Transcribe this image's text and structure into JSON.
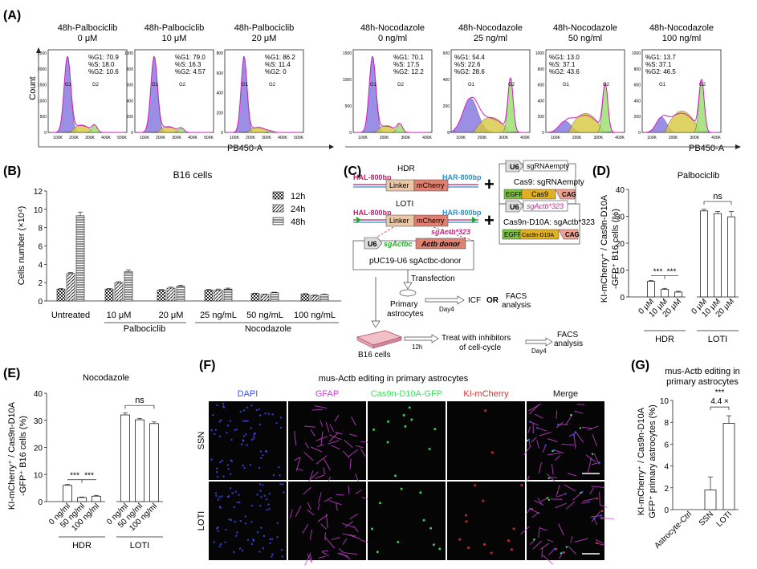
{
  "panelA": {
    "label": "(A)",
    "ylabel": "Count",
    "xlabel": "PB450-A",
    "ticks": [
      "100K",
      "200K",
      "300K",
      "400K",
      "500K"
    ],
    "ticks4": [
      "100K",
      "200K",
      "300K",
      "400K"
    ],
    "plots": [
      {
        "t1": "48h-Palbociclib",
        "t2": "0 μM",
        "g1": "%G1: 70.9",
        "s": "%S: 18.0",
        "g2": "%G2: 10.6",
        "yt": [
          "2500",
          "2000",
          "1500",
          "1000",
          "500",
          "0"
        ]
      },
      {
        "t1": "48h-Palbociclib",
        "t2": "10 μM",
        "g1": "%G1: 79.0",
        "s": "%S: 16.3",
        "g2": "%G2: 4.57",
        "yt": [
          "1000",
          "800",
          "600",
          "400",
          "200",
          "0"
        ]
      },
      {
        "t1": "48h-Palbociclib",
        "t2": "20 μM",
        "g1": "%G1: 86.2",
        "s": "%S: 11.4",
        "g2": "%G2: 0",
        "yt": [
          "800",
          "600",
          "400",
          "200",
          "0"
        ]
      },
      {
        "t1": "48h-Nocodazole",
        "t2": "0 ng/ml",
        "g1": "%G1: 70.1",
        "s": "%S: 17.5",
        "g2": "%G2: 12.2",
        "yt": [
          "1500",
          "1000",
          "500",
          "0"
        ]
      },
      {
        "t1": "48h-Nocodazole",
        "t2": "25 ng/ml",
        "g1": "%G1: 54.4",
        "s": "%S: 22.6",
        "g2": "%G2: 28.6",
        "yt": [
          "600",
          "400",
          "200",
          "0"
        ]
      },
      {
        "t1": "48h-Nocodazole",
        "t2": "50 ng/ml",
        "g1": "%G1: 13.0",
        "s": "%S: 37.1",
        "g2": "%G2: 43.6",
        "yt": [
          "1000",
          "800",
          "600",
          "400",
          "200",
          "0"
        ]
      },
      {
        "t1": "48h-Nocodazole",
        "t2": "100 ng/ml",
        "g1": "%G1: 13.7",
        "s": "%S: 37.1",
        "g2": "%G2: 46.5",
        "yt": [
          "1000",
          "800",
          "600",
          "400",
          "200",
          "0"
        ]
      }
    ],
    "g1_tag": "G1",
    "g2_tag": "G2"
  },
  "panelB": {
    "label": "(B)",
    "title": "B16 cells",
    "ylabel": "Cells number (×10⁴)",
    "yticks": [
      "12",
      "10",
      "8",
      "6",
      "4",
      "2",
      "0"
    ],
    "legend": [
      "12h",
      "24h",
      "48h"
    ],
    "group_palbo": "Palbociclib",
    "group_noco": "Nocodazole"
  },
  "panelC": {
    "label": "(C)",
    "hdr": "HDR",
    "loti": "LOTI",
    "hal": "HAL-800bp",
    "har": "HAR-800bp",
    "linker": "Linker",
    "mcherry": "mCherry",
    "sgactb323": "sgActb*323",
    "u6": "U6",
    "sgrna_empty": "sgRNAempty",
    "cas9_sg": "Cas9: sgRNAempty",
    "egfp": "EGFP",
    "cas9": "Cas9",
    "cag": "CAG",
    "cas9n_sg": "Cas9n-D10A: sgActb*323",
    "cas9n": "Cas9n-D10A",
    "sgactbc": "sgActbc",
    "actb_donor": "Actb donor",
    "puc": "pUC19-U6 sgActbc-donor",
    "transfection": "Transfection",
    "primary": "Primary",
    "astrocytes": "astrocytes",
    "day4": "Day4",
    "icf": "ICF",
    "or": "OR",
    "facs": "FACS",
    "analysis": "analysis",
    "b16": "B16 cells",
    "h12": "12h",
    "treat1": "Treat with inhibitors",
    "treat2": "of cell-cycle",
    "plus": "+"
  },
  "panelD": {
    "label": "(D)",
    "title": "Palbociclib",
    "ylabel1": "KI-mCherry⁺ / Cas9n-D10A",
    "ylabel2": "-GFP⁺ B16 cells (%)",
    "yticks": [
      "40",
      "30",
      "20",
      "10",
      "0"
    ],
    "cats": [
      "0 μM",
      "10 μM",
      "20 μM",
      "0 μM",
      "10 μM",
      "20 μM"
    ],
    "groups": [
      "HDR",
      "LOTI"
    ],
    "sig": "***",
    "ns": "ns"
  },
  "panelE": {
    "label": "(E)",
    "title": "Nocodazole",
    "ylabel1": "KI-mCherry⁺ / Cas9n-D10A",
    "ylabel2": "-GFP⁺ B16 cells (%)",
    "yticks": [
      "40",
      "30",
      "20",
      "10",
      "0"
    ],
    "cats": [
      "0 ng/ml",
      "50 ng/ml",
      "100 ng/ml",
      "0 ng/ml",
      "50 ng/ml",
      "100 ng/ml"
    ],
    "groups": [
      "HDR",
      "LOTI"
    ],
    "sig": "***",
    "ns": "ns"
  },
  "panelF": {
    "label": "(F)",
    "title": "mus-Actb editing in primary astrocytes",
    "cols": [
      "DAPI",
      "GFAP",
      "Cas9n-D10A-GFP",
      "KI-mCherry",
      "Merge"
    ],
    "rows": [
      "SSN",
      "LOTI"
    ]
  },
  "panelG": {
    "label": "(G)",
    "title1": "mus-Actb editing in",
    "title2": "primary astrocytes",
    "ylabel1": "KI-mCherry⁺ / Cas9n-D10A",
    "ylabel2": "GFP⁺ primary astrocytes (%)",
    "yticks": [
      "10",
      "8",
      "6",
      "4",
      "2",
      "0"
    ],
    "cats": [
      "Astrocyte-Ctrl",
      "SSN",
      "LOTI"
    ],
    "sig": "***",
    "fold": "4.4 ×"
  },
  "colors": {
    "g1_fill": "#8a7be0",
    "s_fill": "#d8c840",
    "g2_fill": "#9ee070",
    "magenta": "#d020c0",
    "dapi": "#3a4cff",
    "gfap": "#d040d8",
    "gfp": "#40e060",
    "mcherry": "#e03030",
    "hal": "#c0206a",
    "har": "#2a90d0",
    "linker": "#e8c8a8",
    "mcherry_box": "#e08070",
    "egfp_box": "#7cc040",
    "cas9_box": "#e0b020",
    "cag_box": "#f0a090"
  },
  "chart_data": [
    {
      "type": "bar",
      "title": "B16 cells",
      "ylabel": "Cells number (×10⁴)",
      "ylim": [
        0,
        12
      ],
      "categories": [
        "Untreated",
        "10 μM",
        "20 μM",
        "25 ng/mL",
        "50 ng/mL",
        "100 ng/mL"
      ],
      "series": [
        {
          "name": "12h",
          "values": [
            1.3,
            1.3,
            1.2,
            1.2,
            0.8,
            0.75
          ],
          "err": [
            0.05,
            0.05,
            0.05,
            0.05,
            0.05,
            0.05
          ]
        },
        {
          "name": "24h",
          "values": [
            3.0,
            2.0,
            1.4,
            1.2,
            0.7,
            0.6
          ],
          "err": [
            0.1,
            0.1,
            0.1,
            0.1,
            0.05,
            0.05
          ]
        },
        {
          "name": "48h",
          "values": [
            9.3,
            3.2,
            1.6,
            1.3,
            0.9,
            0.7
          ],
          "err": [
            0.4,
            0.2,
            0.1,
            0.1,
            0.05,
            0.05
          ]
        }
      ]
    },
    {
      "type": "bar",
      "title": "Palbociclib",
      "ylim": [
        0,
        40
      ],
      "categories": [
        "HDR 0 μM",
        "HDR 10 μM",
        "HDR 20 μM",
        "LOTI 0 μM",
        "LOTI 10 μM",
        "LOTI 20 μM"
      ],
      "values": [
        5.8,
        2.8,
        1.8,
        32.0,
        31.0,
        29.8
      ],
      "err": [
        0.3,
        0.4,
        0.3,
        0.6,
        0.8,
        2.0
      ]
    },
    {
      "type": "bar",
      "title": "Nocodazole",
      "ylim": [
        0,
        40
      ],
      "categories": [
        "HDR 0 ng/ml",
        "HDR 50 ng/ml",
        "HDR 100 ng/ml",
        "LOTI 0 ng/ml",
        "LOTI 50 ng/ml",
        "LOTI 100 ng/ml"
      ],
      "values": [
        6.0,
        1.5,
        2.0,
        32.0,
        30.2,
        28.8
      ],
      "err": [
        0.3,
        0.2,
        0.3,
        0.8,
        0.5,
        0.6
      ]
    },
    {
      "type": "bar",
      "title": "mus-Actb editing in primary astrocytes",
      "ylim": [
        0,
        10
      ],
      "categories": [
        "Astrocyte-Ctrl",
        "SSN",
        "LOTI"
      ],
      "values": [
        0.0,
        1.8,
        7.9
      ],
      "err": [
        0.0,
        1.2,
        0.7
      ]
    }
  ]
}
